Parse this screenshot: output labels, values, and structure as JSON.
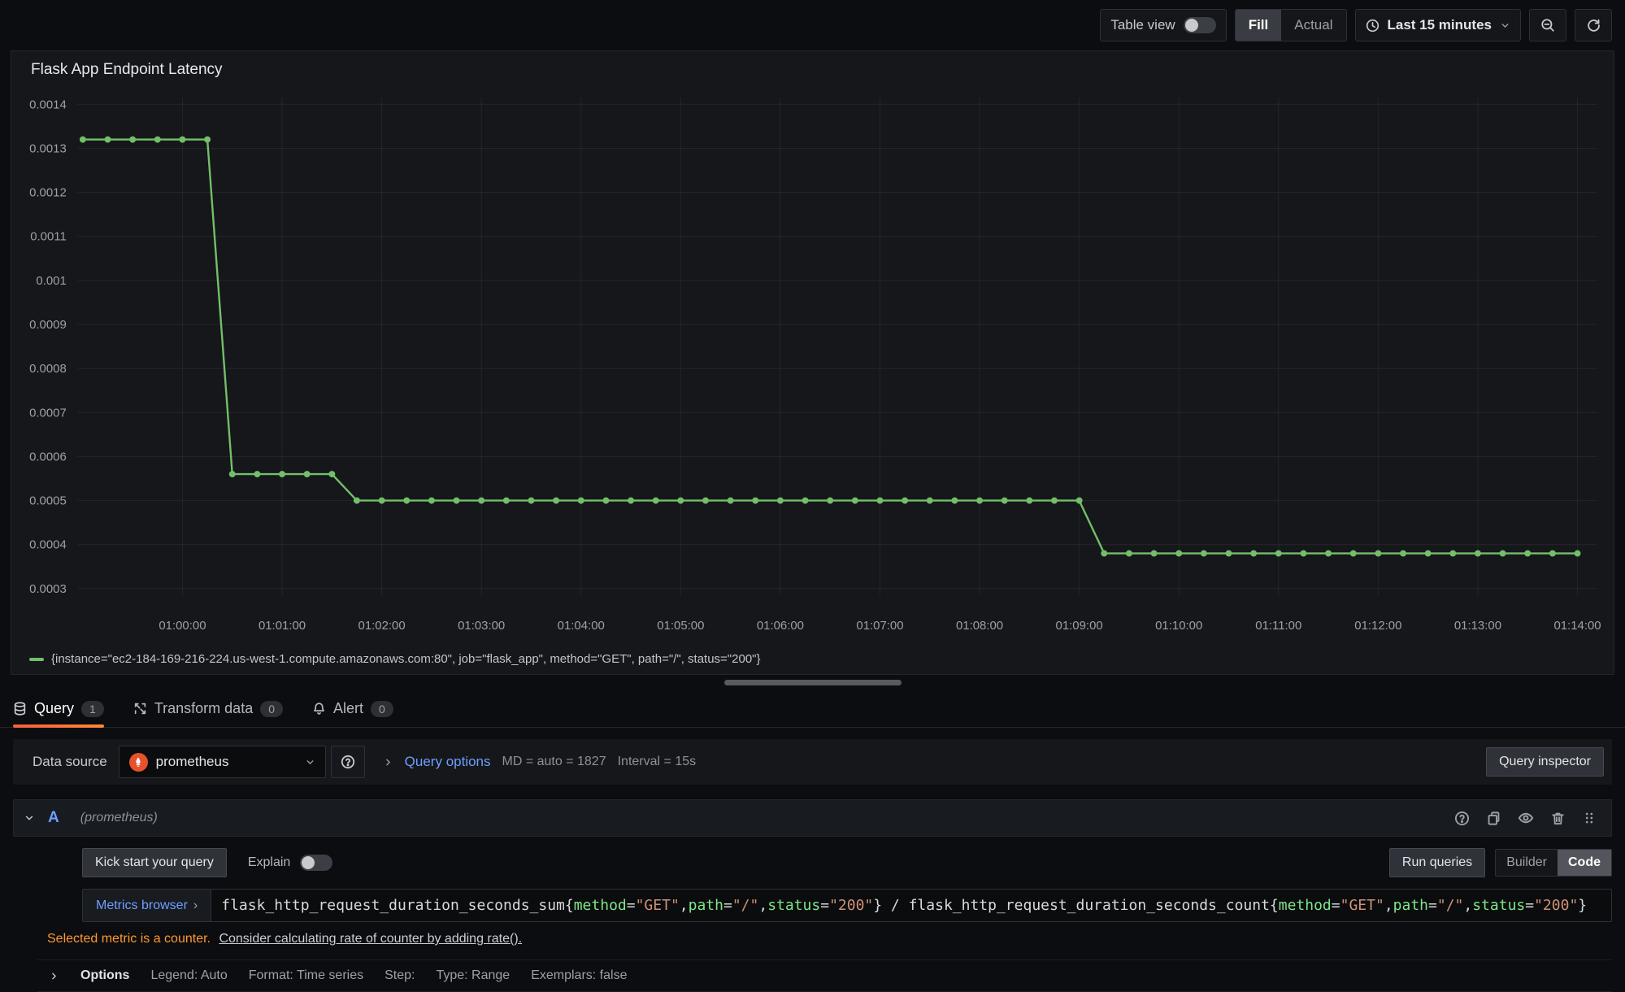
{
  "toolbar": {
    "table_view_label": "Table view",
    "fill_label": "Fill",
    "actual_label": "Actual",
    "time_range_label": "Last 15 minutes"
  },
  "panel": {
    "title": "Flask App Endpoint Latency",
    "legend": "{instance=\"ec2-184-169-216-224.us-west-1.compute.amazonaws.com:80\", job=\"flask_app\", method=\"GET\", path=\"/\", status=\"200\"}"
  },
  "chart_data": {
    "type": "line",
    "title": "Flask App Endpoint Latency",
    "series": [
      {
        "name": "{instance=\"ec2-184-169-216-224.us-west-1.compute.amazonaws.com:80\", job=\"flask_app\", method=\"GET\", path=\"/\", status=\"200\"}",
        "x_start": "00:59:00",
        "x_step_seconds": 15,
        "values": [
          0.00132,
          0.00132,
          0.00132,
          0.00132,
          0.00132,
          0.00132,
          0.00056,
          0.00056,
          0.00056,
          0.00056,
          0.00056,
          0.0005,
          0.0005,
          0.0005,
          0.0005,
          0.0005,
          0.0005,
          0.0005,
          0.0005,
          0.0005,
          0.0005,
          0.0005,
          0.0005,
          0.0005,
          0.0005,
          0.0005,
          0.0005,
          0.0005,
          0.0005,
          0.0005,
          0.0005,
          0.0005,
          0.0005,
          0.0005,
          0.0005,
          0.0005,
          0.0005,
          0.0005,
          0.0005,
          0.0005,
          0.0005,
          0.00038,
          0.00038,
          0.00038,
          0.00038,
          0.00038,
          0.00038,
          0.00038,
          0.00038,
          0.00038,
          0.00038,
          0.00038,
          0.00038,
          0.00038,
          0.00038,
          0.00038,
          0.00038,
          0.00038,
          0.00038,
          0.00038,
          0.00038
        ]
      }
    ],
    "x_ticks": [
      "01:00:00",
      "01:01:00",
      "01:02:00",
      "01:03:00",
      "01:04:00",
      "01:05:00",
      "01:06:00",
      "01:07:00",
      "01:08:00",
      "01:09:00",
      "01:10:00",
      "01:11:00",
      "01:12:00",
      "01:13:00",
      "01:14:00"
    ],
    "y_ticks": [
      "0.0003",
      "0.0004",
      "0.0005",
      "0.0006",
      "0.0007",
      "0.0008",
      "0.0009",
      "0.001",
      "0.0011",
      "0.0012",
      "0.0013",
      "0.0014"
    ],
    "x_domain": [
      "00:58:57",
      "01:14:12"
    ],
    "y_domain": [
      0.000285,
      0.001415
    ],
    "line_color": "#73bf69",
    "grid": true,
    "legend_position": "bottom",
    "xlabel": "",
    "ylabel": ""
  },
  "tabs": [
    {
      "label": "Query",
      "badge": "1"
    },
    {
      "label": "Transform data",
      "badge": "0"
    },
    {
      "label": "Alert",
      "badge": "0"
    }
  ],
  "datasource_row": {
    "label": "Data source",
    "value": "prometheus",
    "query_options_label": "Query options",
    "md_text": "MD = auto = 1827",
    "interval_text": "Interval = 15s",
    "query_inspector_label": "Query inspector"
  },
  "query_row": {
    "ref_id": "A",
    "datasource_hint": "(prometheus)"
  },
  "query_toolbar": {
    "kick_start_label": "Kick start your query",
    "explain_label": "Explain",
    "run_queries_label": "Run queries",
    "builder_label": "Builder",
    "code_label": "Code"
  },
  "editor": {
    "metrics_browser_label": "Metrics browser",
    "metrics_browser_chevron": "›",
    "query_tokens": [
      {
        "c": "plain",
        "t": "flask_http_request_duration_seconds_sum{"
      },
      {
        "c": "label",
        "t": "method"
      },
      {
        "c": "plain",
        "t": "="
      },
      {
        "c": "string",
        "t": "\"GET\""
      },
      {
        "c": "plain",
        "t": ","
      },
      {
        "c": "label",
        "t": "path"
      },
      {
        "c": "plain",
        "t": "="
      },
      {
        "c": "string",
        "t": "\"/\""
      },
      {
        "c": "plain",
        "t": ","
      },
      {
        "c": "label",
        "t": "status"
      },
      {
        "c": "plain",
        "t": "="
      },
      {
        "c": "string",
        "t": "\"200\""
      },
      {
        "c": "plain",
        "t": "} / flask_http_request_duration_seconds_count{"
      },
      {
        "c": "label",
        "t": "method"
      },
      {
        "c": "plain",
        "t": "="
      },
      {
        "c": "string",
        "t": "\"GET\""
      },
      {
        "c": "plain",
        "t": ","
      },
      {
        "c": "label",
        "t": "path"
      },
      {
        "c": "plain",
        "t": "="
      },
      {
        "c": "string",
        "t": "\"/\""
      },
      {
        "c": "plain",
        "t": ","
      },
      {
        "c": "label",
        "t": "status"
      },
      {
        "c": "plain",
        "t": "="
      },
      {
        "c": "string",
        "t": "\"200\""
      },
      {
        "c": "plain",
        "t": "}"
      }
    ],
    "warning_text": "Selected metric is a counter.",
    "warning_link": "Consider calculating rate of counter by adding rate()."
  },
  "options_row": {
    "label": "Options",
    "items": [
      "Legend: Auto",
      "Format: Time series",
      "Step:",
      "Type: Range",
      "Exemplars: false"
    ]
  },
  "icons": {
    "clock-icon": "circle with hands",
    "chevron-down-icon": "v",
    "zoom-out-icon": "magnifier with minus",
    "refresh-icon": "circular arrow",
    "database-icon": "cylinder",
    "transform-icon": "process arrows",
    "bell-icon": "bell",
    "help-icon": "question mark in circle",
    "copy-icon": "two sheets",
    "eye-icon": "eye",
    "trash-icon": "trash can",
    "grip-icon": "six dots",
    "prometheus-logo": "orange flame"
  }
}
